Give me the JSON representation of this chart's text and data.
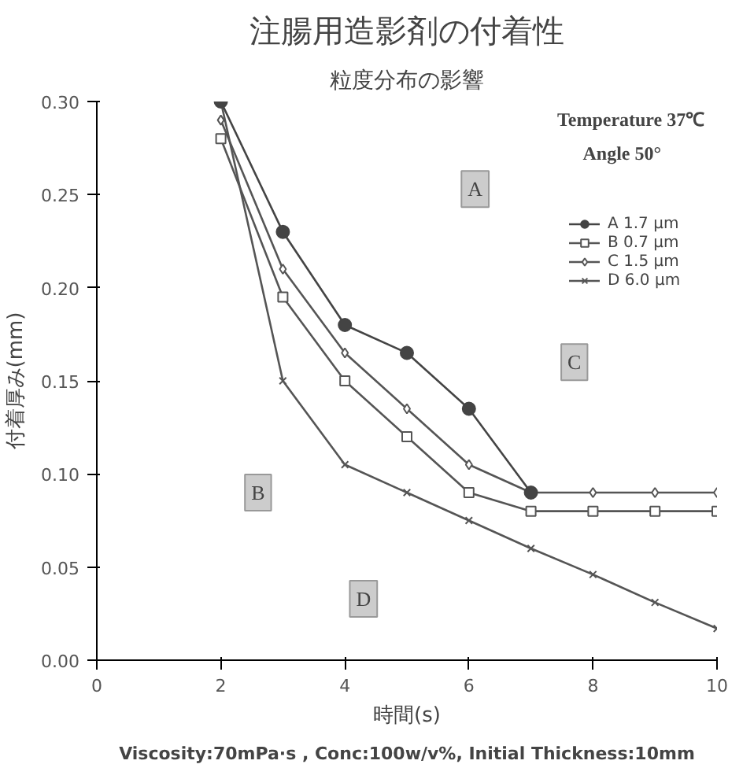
{
  "chart_data": {
    "type": "line",
    "title": "注腸用造影剤の付着性",
    "subtitle": "粒度分布の影響",
    "xlabel": "時間(s)",
    "ylabel": "付着厚み(mm)",
    "x": [
      2,
      3,
      4,
      5,
      6,
      7,
      8,
      9,
      10
    ],
    "series": [
      {
        "name": "A 1.7 μm",
        "color": "#444444",
        "marker": "circle",
        "values": [
          0.3,
          0.23,
          0.18,
          0.165,
          0.135,
          0.09,
          null,
          null,
          null
        ]
      },
      {
        "name": "B 0.7 μm",
        "color": "#555555",
        "marker": "square",
        "values": [
          0.28,
          0.195,
          0.15,
          0.12,
          0.09,
          0.08,
          0.08,
          0.08,
          0.08
        ]
      },
      {
        "name": "C 1.5 μm",
        "color": "#555555",
        "marker": "diamond",
        "values": [
          0.29,
          0.21,
          0.165,
          0.135,
          0.105,
          0.09,
          0.09,
          0.09,
          0.09
        ]
      },
      {
        "name": "D 6.0 μm",
        "color": "#555555",
        "marker": "cross",
        "values": [
          0.3,
          0.15,
          0.105,
          0.09,
          0.075,
          0.06,
          0.046,
          0.031,
          0.017
        ]
      }
    ],
    "xlim": [
      0,
      10
    ],
    "xticks": [
      0,
      2,
      4,
      6,
      8,
      10
    ],
    "ylim": [
      0,
      0.3
    ],
    "yticks": [
      {
        "value": 0,
        "label": "0.00"
      },
      0.05,
      {
        "value": 0.1,
        "label": "0.10"
      },
      0.15,
      {
        "value": 0.2,
        "label": "0.20"
      },
      0.25,
      {
        "value": 0.3,
        "label": "0.30"
      }
    ],
    "grid": false,
    "legend": "top right",
    "annotations": [
      "Temperature 37℃",
      "Angle 50°",
      {
        "text": "A",
        "x": 6.1,
        "y": 0.253
      },
      {
        "text": "B",
        "x": 2.6,
        "y": 0.09
      },
      {
        "text": "C",
        "x": 7.7,
        "y": 0.16
      },
      {
        "text": "D",
        "x": 4.3,
        "y": 0.033
      },
      "Viscosity:70mPa·s , Conc:100w/v%, Initial Thickness:10mm"
    ]
  }
}
